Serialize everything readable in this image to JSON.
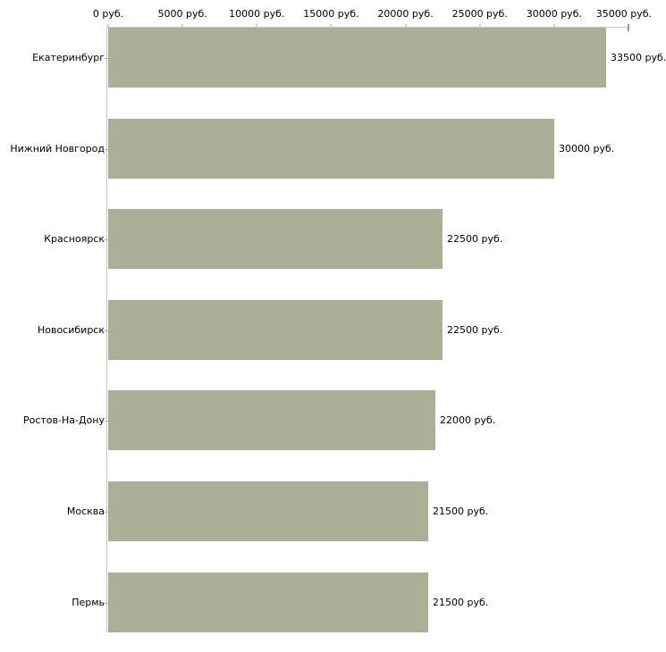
{
  "chart_data": {
    "type": "bar",
    "orientation": "horizontal",
    "title": "",
    "xlabel": "",
    "ylabel": "",
    "categories": [
      "Екатеринбург",
      "Нижний Новгород",
      "Красноярск",
      "Новосибирск",
      "Ростов-На-Дону",
      "Москва",
      "Пермь"
    ],
    "values": [
      33500,
      30000,
      22500,
      22500,
      22000,
      21500,
      21500
    ],
    "value_labels": [
      "33500 руб.",
      "30000 руб.",
      "22500 руб.",
      "22500 руб.",
      "22000 руб.",
      "21500 руб.",
      "21500 руб."
    ],
    "x_axis": {
      "position": "top",
      "min": 0,
      "max": 35000,
      "tick_step": 5000,
      "tick_values": [
        0,
        5000,
        10000,
        15000,
        20000,
        25000,
        30000,
        35000
      ],
      "tick_labels": [
        "0 руб.",
        "5000 руб.",
        "10000 руб.",
        "15000 руб.",
        "20000 руб.",
        "25000 руб.",
        "30000 руб.",
        "35000 руб."
      ]
    },
    "grid": false,
    "legend": false,
    "colors": {
      "bar_fill": "#aab097",
      "axis_line": "#c6c6c6",
      "minor_tick": "#d0d3b5",
      "end_tick": "#9ba175",
      "category_tick": "#b0b0b0",
      "text": "#000000",
      "background": "#ffffff"
    }
  }
}
